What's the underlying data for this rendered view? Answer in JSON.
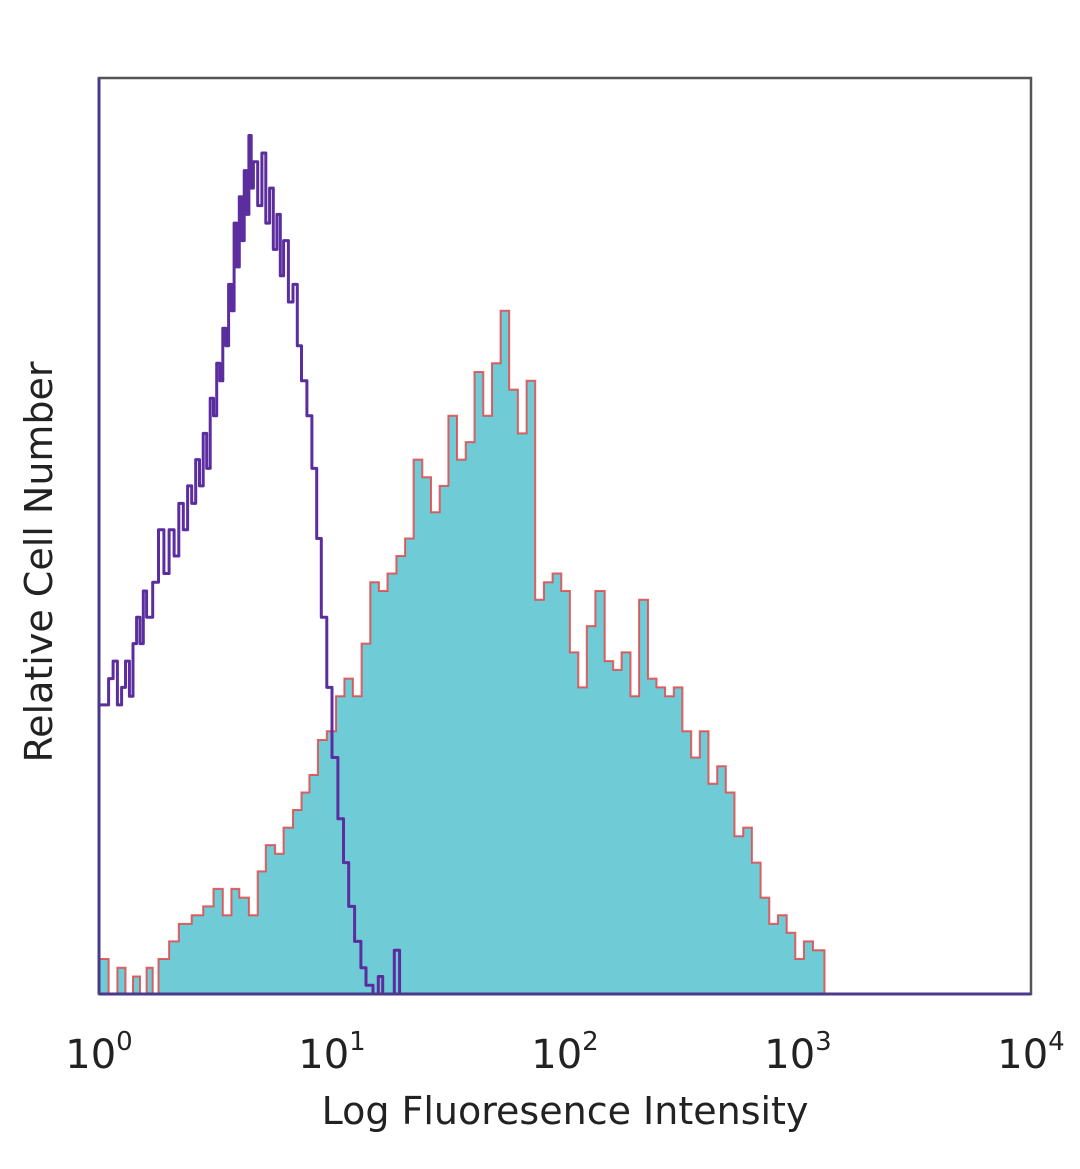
{
  "chart_data": {
    "type": "area",
    "xlabel": "Log Fluoresence Intensity",
    "ylabel": "Relative Cell Number",
    "xscale": "log",
    "xlim": [
      1,
      10000
    ],
    "ylim": [
      0,
      100
    ],
    "grid": false,
    "legend": "none",
    "x_ticks": [
      {
        "base": "10",
        "exp": "0"
      },
      {
        "base": "10",
        "exp": "1"
      },
      {
        "base": "10",
        "exp": "2"
      },
      {
        "base": "10",
        "exp": "3"
      },
      {
        "base": "10",
        "exp": "4"
      }
    ],
    "series": [
      {
        "style": "filled",
        "fill_color": "#6fcbd6",
        "edge_color": "#e0484a",
        "points": [
          [
            1.0,
            4
          ],
          [
            1.1,
            0
          ],
          [
            1.2,
            3
          ],
          [
            1.3,
            0
          ],
          [
            1.4,
            2
          ],
          [
            1.5,
            0
          ],
          [
            1.6,
            3
          ],
          [
            1.7,
            0
          ],
          [
            1.8,
            4
          ],
          [
            2.0,
            6
          ],
          [
            2.2,
            8
          ],
          [
            2.5,
            9
          ],
          [
            2.8,
            10
          ],
          [
            3.1,
            12
          ],
          [
            3.4,
            9
          ],
          [
            3.7,
            12
          ],
          [
            4.0,
            11
          ],
          [
            4.4,
            9
          ],
          [
            4.8,
            14
          ],
          [
            5.2,
            17
          ],
          [
            5.7,
            16
          ],
          [
            6.2,
            19
          ],
          [
            6.8,
            21
          ],
          [
            7.4,
            23
          ],
          [
            8.0,
            25
          ],
          [
            8.7,
            29
          ],
          [
            9.5,
            30
          ],
          [
            10.4,
            34
          ],
          [
            11.3,
            36
          ],
          [
            12.3,
            34
          ],
          [
            13.4,
            40
          ],
          [
            14.6,
            47
          ],
          [
            15.9,
            46
          ],
          [
            17.3,
            48
          ],
          [
            18.9,
            50
          ],
          [
            20.6,
            52
          ],
          [
            22.4,
            61
          ],
          [
            24.4,
            59
          ],
          [
            26.6,
            55
          ],
          [
            29.0,
            58
          ],
          [
            31.6,
            66
          ],
          [
            34.4,
            61
          ],
          [
            37.5,
            63
          ],
          [
            40.9,
            71
          ],
          [
            44.6,
            66
          ],
          [
            48.6,
            72
          ],
          [
            52.9,
            78
          ],
          [
            57.6,
            69
          ],
          [
            62.8,
            64
          ],
          [
            68.4,
            70
          ],
          [
            74.5,
            45
          ],
          [
            81.2,
            47
          ],
          [
            88.5,
            48
          ],
          [
            96.4,
            46
          ],
          [
            105,
            39
          ],
          [
            114,
            35
          ],
          [
            124,
            42
          ],
          [
            135,
            46
          ],
          [
            148,
            38
          ],
          [
            161,
            37
          ],
          [
            175,
            39
          ],
          [
            191,
            34
          ],
          [
            208,
            45
          ],
          [
            227,
            36
          ],
          [
            247,
            35
          ],
          [
            269,
            34
          ],
          [
            293,
            35
          ],
          [
            319,
            30
          ],
          [
            348,
            27
          ],
          [
            379,
            30
          ],
          [
            413,
            24
          ],
          [
            450,
            26
          ],
          [
            490,
            23
          ],
          [
            534,
            18
          ],
          [
            582,
            19
          ],
          [
            634,
            15
          ],
          [
            691,
            11
          ],
          [
            753,
            8
          ],
          [
            820,
            9
          ],
          [
            894,
            7
          ],
          [
            974,
            4
          ],
          [
            1060,
            6
          ],
          [
            1160,
            5
          ],
          [
            1300,
            0
          ],
          [
            10000,
            0
          ]
        ]
      },
      {
        "style": "outline",
        "line_color": "#5b2d9e",
        "points": [
          [
            1.0,
            33
          ],
          [
            1.1,
            36
          ],
          [
            1.15,
            38
          ],
          [
            1.2,
            33
          ],
          [
            1.25,
            35
          ],
          [
            1.3,
            38
          ],
          [
            1.35,
            34
          ],
          [
            1.4,
            40
          ],
          [
            1.45,
            43
          ],
          [
            1.5,
            40
          ],
          [
            1.55,
            46
          ],
          [
            1.6,
            43
          ],
          [
            1.7,
            47
          ],
          [
            1.8,
            53
          ],
          [
            1.9,
            48
          ],
          [
            2.0,
            53
          ],
          [
            2.1,
            50
          ],
          [
            2.2,
            56
          ],
          [
            2.3,
            53
          ],
          [
            2.4,
            58
          ],
          [
            2.5,
            56
          ],
          [
            2.6,
            61
          ],
          [
            2.7,
            58
          ],
          [
            2.8,
            64
          ],
          [
            2.9,
            60
          ],
          [
            3.0,
            68
          ],
          [
            3.1,
            66
          ],
          [
            3.2,
            72
          ],
          [
            3.3,
            70
          ],
          [
            3.4,
            76
          ],
          [
            3.5,
            74
          ],
          [
            3.6,
            81
          ],
          [
            3.7,
            78
          ],
          [
            3.8,
            88
          ],
          [
            3.9,
            83
          ],
          [
            4.0,
            91
          ],
          [
            4.1,
            86
          ],
          [
            4.2,
            94
          ],
          [
            4.3,
            89
          ],
          [
            4.4,
            98
          ],
          [
            4.5,
            92
          ],
          [
            4.6,
            95
          ],
          [
            4.8,
            90
          ],
          [
            5.0,
            96
          ],
          [
            5.2,
            88
          ],
          [
            5.4,
            92
          ],
          [
            5.6,
            85
          ],
          [
            5.8,
            89
          ],
          [
            6.0,
            82
          ],
          [
            6.2,
            86
          ],
          [
            6.5,
            79
          ],
          [
            6.8,
            81
          ],
          [
            7.1,
            74
          ],
          [
            7.4,
            70
          ],
          [
            7.8,
            66
          ],
          [
            8.2,
            60
          ],
          [
            8.6,
            52
          ],
          [
            9.0,
            43
          ],
          [
            9.5,
            35
          ],
          [
            10.0,
            27
          ],
          [
            10.6,
            20
          ],
          [
            11.2,
            15
          ],
          [
            11.8,
            10
          ],
          [
            12.5,
            6
          ],
          [
            13.3,
            3
          ],
          [
            14.0,
            1
          ],
          [
            15.0,
            0
          ],
          [
            15.8,
            2
          ],
          [
            16.5,
            0
          ],
          [
            17.5,
            0
          ],
          [
            18.5,
            5
          ],
          [
            19.5,
            0
          ],
          [
            10000,
            0
          ]
        ]
      }
    ]
  }
}
